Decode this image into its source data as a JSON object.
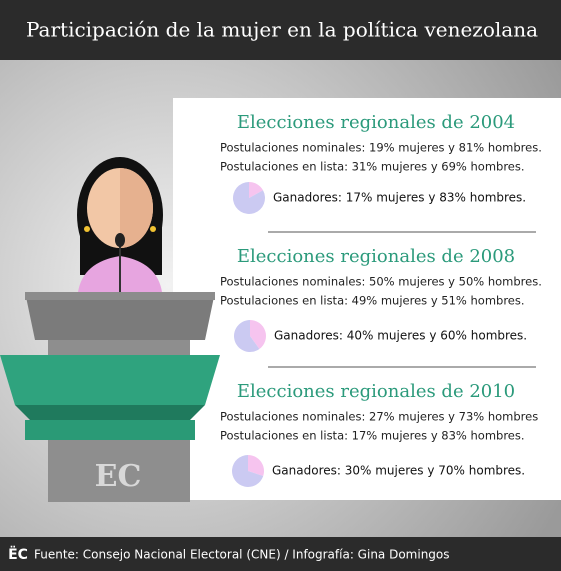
{
  "header": {
    "title": "Participación de la mujer en la política venezolana"
  },
  "logo": "EC",
  "sections": [
    {
      "title": "Elecciones regionales de 2004",
      "lines": [
        "Postulaciones nominales: 19% mujeres y 81% hombres.",
        "Postulaciones en lista: 31% mujeres y 69% hombres."
      ],
      "winners": "Ganadores: 17% mujeres y 83% hombres.",
      "winners_pie": [
        17,
        83
      ]
    },
    {
      "title": "Elecciones regionales de 2008",
      "lines": [
        "Postulaciones nominales: 50% mujeres y 50% hombres.",
        "Postulaciones en lista: 49% mujeres y 51% hombres."
      ],
      "winners": "Ganadores: 40% mujeres y 60% hombres.",
      "winners_pie": [
        40,
        60
      ]
    },
    {
      "title": "Elecciones regionales de 2010",
      "lines": [
        "Postulaciones nominales: 27% mujeres y 73% hombres",
        "Postulaciones en lista: 17% mujeres y 83% hombres."
      ],
      "winners": "Ganadores: 30% mujeres y 70% hombres.",
      "winners_pie": [
        30,
        70
      ]
    }
  ],
  "pie_colors": [
    "#f6c4ef",
    "#cbcaf2"
  ],
  "footer": {
    "logo": "ËC",
    "source": "Fuente: Consejo Nacional Electoral (CNE) / Infografía: Gina Domingos"
  }
}
